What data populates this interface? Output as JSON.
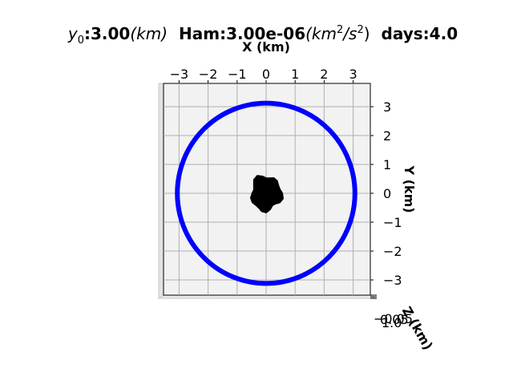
{
  "chart_data": {
    "type": "line",
    "projection": "3d",
    "view": "top-down",
    "title_parts": {
      "y0_symbol": "y",
      "y0_subscript": "0",
      "y0_value": ":3.00",
      "y0_unit": "(km)",
      "ham_label": "Ham:3.00e-06",
      "ham_unit_base": "(km",
      "ham_unit_exp": "2",
      "ham_unit_mid": "/s",
      "ham_unit_exp2": "2",
      "ham_unit_close": ")",
      "days_label": "days:4.0"
    },
    "xlabel": "X (km)",
    "ylabel": "Y (km)",
    "zlabel": "Z (km)",
    "xlim": [
      -3.05,
      3.05
    ],
    "ylim": [
      -3.05,
      3.05
    ],
    "xticks": [
      -3,
      -2,
      -1,
      0,
      1,
      2,
      3
    ],
    "yticks": [
      -3,
      -2,
      -1,
      0,
      1,
      2,
      3
    ],
    "xtick_labels": [
      "−3",
      "−2",
      "−1",
      "0",
      "1",
      "2",
      "3"
    ],
    "ytick_labels": [
      "−3",
      "−2",
      "−1",
      "0",
      "1",
      "2",
      "3"
    ],
    "ztick_labels": [
      "−0.05",
      "0.05",
      "1.0"
    ],
    "grid": true,
    "series": [
      {
        "color": "#0000ff",
        "shape": "circle",
        "center": [
          0,
          0
        ],
        "radius": 3.0,
        "line": "thick"
      },
      {
        "color": "#000000",
        "shape": "blob",
        "center": [
          0,
          0
        ],
        "radius": 0.5
      }
    ]
  }
}
